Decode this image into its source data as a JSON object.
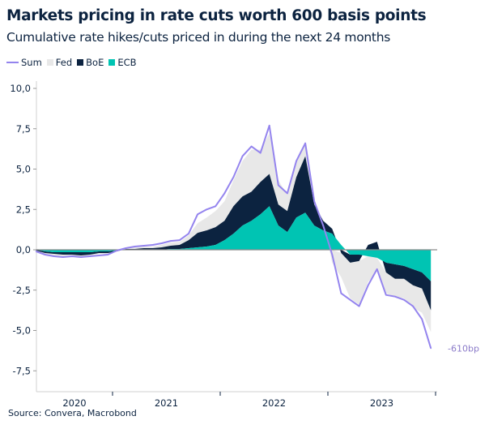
{
  "title": "Markets pricing in rate cuts worth 600 basis points",
  "subtitle": "Cumulative rate hikes/cuts priced in during the next 24 months",
  "source": "Source: Convera, Macrobond",
  "colors": {
    "Sum": "#9484ee",
    "Fed": "#e8e8e8",
    "BoE": "#0c2340",
    "ECB": "#00c4b3",
    "end_label": "#8b7bc9",
    "text": "#0c2340"
  },
  "chart_data": {
    "type": "area",
    "stacked": true,
    "legend": [
      "Sum",
      "Fed",
      "BoE",
      "ECB"
    ],
    "legend_placement": "top-left",
    "ylim": [
      -7.5,
      10.0
    ],
    "yticks": [
      "10,0",
      "7,5",
      "5,0",
      "2,5",
      "0,0",
      "-2,5",
      "-5,0",
      "-7,5"
    ],
    "ytick_values": [
      10,
      7.5,
      5,
      2.5,
      0,
      -2.5,
      -5,
      -7.5
    ],
    "xlim": [
      "2020-04",
      "2024-01"
    ],
    "xticks": [
      "2020",
      "2021",
      "2022",
      "2023"
    ],
    "grid": false,
    "end_annotation": "-610bp",
    "x": [
      "2020-04",
      "2020-05",
      "2020-06",
      "2020-07",
      "2020-08",
      "2020-09",
      "2020-10",
      "2020-11",
      "2020-12",
      "2021-01",
      "2021-02",
      "2021-03",
      "2021-04",
      "2021-05",
      "2021-06",
      "2021-07",
      "2021-08",
      "2021-09",
      "2021-10",
      "2021-11",
      "2021-12",
      "2022-01",
      "2022-02",
      "2022-03",
      "2022-04",
      "2022-05",
      "2022-06",
      "2022-07",
      "2022-08",
      "2022-09",
      "2022-10",
      "2022-11",
      "2022-12",
      "2023-01",
      "2023-02",
      "2023-03",
      "2023-04",
      "2023-05",
      "2023-06",
      "2023-07",
      "2023-08",
      "2023-09",
      "2023-10",
      "2023-11",
      "2023-12"
    ],
    "series": [
      {
        "name": "ECB",
        "values": [
          0,
          -0.1,
          -0.15,
          -0.15,
          -0.15,
          -0.15,
          -0.15,
          -0.1,
          -0.1,
          -0.05,
          0,
          0,
          0,
          0,
          0,
          0.05,
          0.05,
          0.1,
          0.15,
          0.2,
          0.3,
          0.6,
          1.0,
          1.5,
          1.8,
          2.2,
          2.7,
          1.5,
          1.1,
          2.0,
          2.3,
          1.5,
          1.2,
          1.0,
          0.3,
          -0.3,
          -0.3,
          -0.4,
          -0.5,
          -0.8,
          -0.9,
          -1.0,
          -1.2,
          -1.4,
          -1.95
        ]
      },
      {
        "name": "BoE",
        "values": [
          -0.05,
          -0.1,
          -0.1,
          -0.15,
          -0.15,
          -0.2,
          -0.15,
          -0.1,
          -0.1,
          -0.05,
          0.05,
          0.05,
          0.1,
          0.1,
          0.15,
          0.2,
          0.25,
          0.5,
          0.9,
          1.0,
          1.1,
          1.2,
          1.7,
          1.8,
          1.8,
          2.0,
          2.0,
          1.3,
          1.3,
          2.5,
          3.5,
          1.3,
          0.6,
          0.3,
          -0.2,
          -0.5,
          -0.4,
          0.3,
          0.5,
          -0.6,
          -0.9,
          -0.8,
          -1.0,
          -1.0,
          -1.8
        ]
      },
      {
        "name": "Fed",
        "values": [
          -0.05,
          -0.05,
          -0.1,
          -0.1,
          -0.1,
          -0.1,
          -0.1,
          -0.05,
          -0.05,
          0,
          0.05,
          0.1,
          0.1,
          0.1,
          0.15,
          0.2,
          0.2,
          0.3,
          0.6,
          0.8,
          1.0,
          1.2,
          1.6,
          2.2,
          2.6,
          2.0,
          2.5,
          1.5,
          1.0,
          1.0,
          0.8,
          0.2,
          0,
          -0.8,
          -1.5,
          -2.2,
          -2.7,
          -1.6,
          -0.8,
          -1.3,
          -1.1,
          -1.2,
          -1.4,
          -1.5,
          -1.35
        ]
      },
      {
        "name": "Sum",
        "values": [
          -0.1,
          -0.3,
          -0.4,
          -0.45,
          -0.4,
          -0.45,
          -0.4,
          -0.35,
          -0.3,
          -0.05,
          0.1,
          0.2,
          0.25,
          0.3,
          0.4,
          0.55,
          0.6,
          1.0,
          2.2,
          2.5,
          2.7,
          3.5,
          4.5,
          5.8,
          6.4,
          6.0,
          7.7,
          4.0,
          3.5,
          5.5,
          6.6,
          3.0,
          1.5,
          -0.3,
          -2.7,
          -3.1,
          -3.5,
          -2.2,
          -1.2,
          -2.8,
          -2.9,
          -3.1,
          -3.5,
          -4.3,
          -6.1
        ]
      }
    ]
  }
}
